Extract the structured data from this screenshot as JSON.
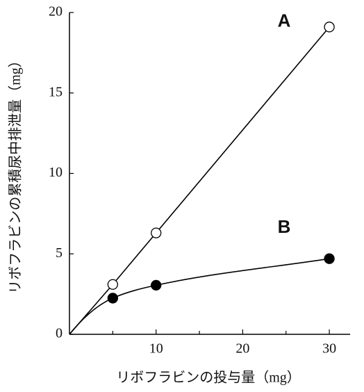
{
  "chart_data": {
    "type": "line",
    "x_label": "リボフラビンの投与量（mg）",
    "y_label": "リボフラビンの累積尿中排泄量（mg）",
    "xlim": [
      0,
      32.4
    ],
    "ylim": [
      0,
      20
    ],
    "xticks": [
      10,
      20,
      30
    ],
    "xminorticks": [
      5,
      15,
      25
    ],
    "yticks": [
      0,
      5,
      10,
      15,
      20
    ],
    "series": [
      {
        "name": "A",
        "color": "#000000",
        "marker_fill": "#ffffff",
        "smooth": false,
        "x": [
          0,
          5,
          10,
          30
        ],
        "values": [
          0,
          3.1,
          6.3,
          19.1
        ],
        "markers": [
          false,
          true,
          true,
          true
        ]
      },
      {
        "name": "B",
        "color": "#000000",
        "marker_fill": "#000000",
        "smooth": true,
        "x": [
          0,
          5,
          10,
          30
        ],
        "values": [
          0,
          2.25,
          3.05,
          4.7
        ],
        "markers": [
          false,
          true,
          true,
          true
        ]
      }
    ]
  }
}
